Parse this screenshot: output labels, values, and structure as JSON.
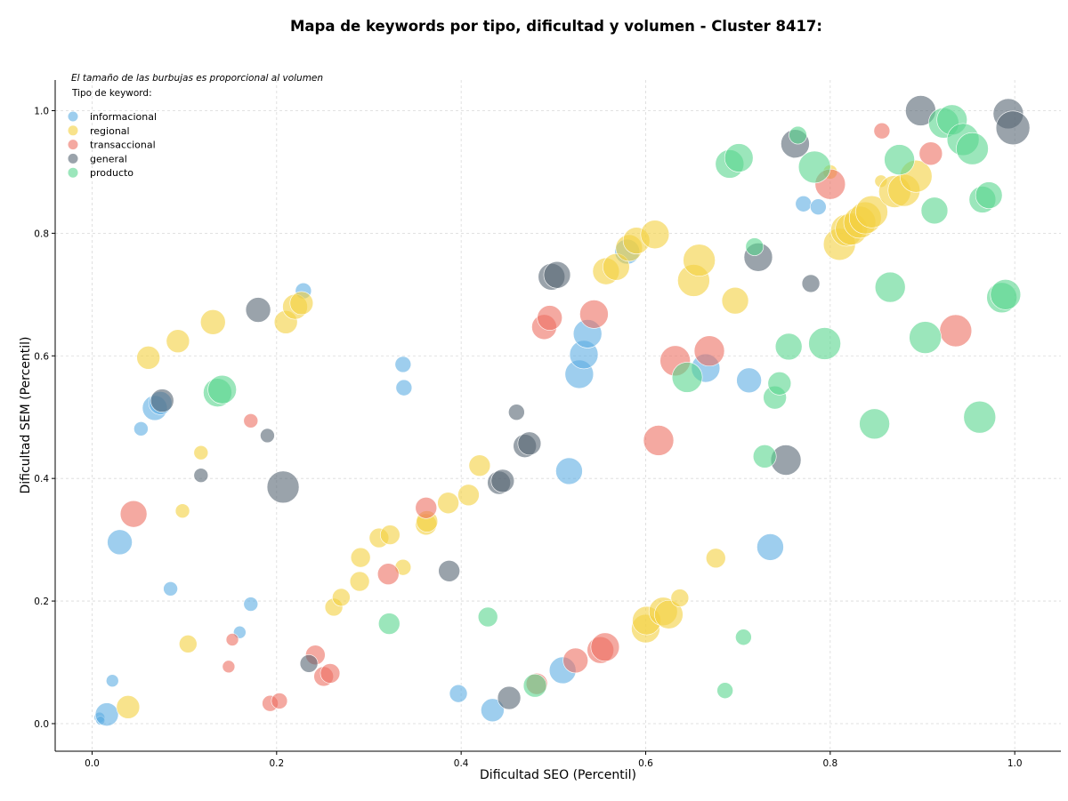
{
  "chart_data": {
    "type": "scatter",
    "title": "Mapa de keywords por tipo, dificultad y volumen - Cluster 8417:",
    "xlabel": "Dificultad SEO (Percentil)",
    "ylabel": "Dificultad SEM (Percentil)",
    "xlim": [
      -0.04,
      1.05
    ],
    "ylim": [
      -0.045,
      1.05
    ],
    "xticks": [
      "0.0",
      "0.2",
      "0.4",
      "0.6",
      "0.8",
      "1.0"
    ],
    "yticks": [
      "0.0",
      "0.2",
      "0.4",
      "0.6",
      "0.8",
      "1.0"
    ],
    "grid": true,
    "legend_position": "top-left",
    "note": "El tamaño de las burbujas es proporcional al volumen",
    "legend_title": "Tipo de keyword:",
    "series": [
      {
        "name": "informacional",
        "color": "#5dade2",
        "points": [
          [
            0.008,
            0.01,
            6
          ],
          [
            0.009,
            0.005,
            5
          ],
          [
            0.016,
            0.015,
            13
          ],
          [
            0.022,
            0.07,
            7
          ],
          [
            0.03,
            0.296,
            14
          ],
          [
            0.053,
            0.481,
            8
          ],
          [
            0.068,
            0.515,
            14
          ],
          [
            0.074,
            0.523,
            13
          ],
          [
            0.085,
            0.22,
            8
          ],
          [
            0.16,
            0.149,
            7
          ],
          [
            0.172,
            0.195,
            8
          ],
          [
            0.229,
            0.706,
            9
          ],
          [
            0.337,
            0.586,
            9
          ],
          [
            0.338,
            0.548,
            9
          ],
          [
            0.397,
            0.049,
            10
          ],
          [
            0.434,
            0.022,
            13
          ],
          [
            0.51,
            0.087,
            15
          ],
          [
            0.517,
            0.412,
            15
          ],
          [
            0.528,
            0.57,
            16
          ],
          [
            0.533,
            0.602,
            16
          ],
          [
            0.537,
            0.636,
            16
          ],
          [
            0.58,
            0.77,
            14
          ],
          [
            0.665,
            0.58,
            16
          ],
          [
            0.712,
            0.56,
            14
          ],
          [
            0.735,
            0.288,
            15
          ],
          [
            0.771,
            0.848,
            9
          ],
          [
            0.787,
            0.843,
            9
          ]
        ]
      },
      {
        "name": "regional",
        "color": "#f4d03f",
        "points": [
          [
            0.039,
            0.027,
            13
          ],
          [
            0.061,
            0.597,
            13
          ],
          [
            0.093,
            0.624,
            13
          ],
          [
            0.098,
            0.347,
            8
          ],
          [
            0.104,
            0.13,
            10
          ],
          [
            0.118,
            0.442,
            8
          ],
          [
            0.131,
            0.655,
            14
          ],
          [
            0.21,
            0.655,
            13
          ],
          [
            0.22,
            0.68,
            14
          ],
          [
            0.227,
            0.686,
            13
          ],
          [
            0.262,
            0.19,
            10
          ],
          [
            0.27,
            0.206,
            10
          ],
          [
            0.29,
            0.232,
            11
          ],
          [
            0.291,
            0.271,
            11
          ],
          [
            0.311,
            0.303,
            11
          ],
          [
            0.323,
            0.308,
            11
          ],
          [
            0.337,
            0.255,
            9
          ],
          [
            0.362,
            0.325,
            12
          ],
          [
            0.363,
            0.33,
            12
          ],
          [
            0.386,
            0.36,
            12
          ],
          [
            0.408,
            0.373,
            12
          ],
          [
            0.42,
            0.421,
            12
          ],
          [
            0.557,
            0.738,
            15
          ],
          [
            0.568,
            0.745,
            15
          ],
          [
            0.582,
            0.776,
            15
          ],
          [
            0.59,
            0.788,
            15
          ],
          [
            0.6,
            0.155,
            16
          ],
          [
            0.601,
            0.168,
            16
          ],
          [
            0.61,
            0.798,
            16
          ],
          [
            0.619,
            0.183,
            16
          ],
          [
            0.625,
            0.178,
            16
          ],
          [
            0.637,
            0.205,
            10
          ],
          [
            0.652,
            0.723,
            18
          ],
          [
            0.658,
            0.756,
            18
          ],
          [
            0.676,
            0.27,
            11
          ],
          [
            0.697,
            0.69,
            15
          ],
          [
            0.8,
            0.9,
            8
          ],
          [
            0.81,
            0.782,
            18
          ],
          [
            0.818,
            0.805,
            18
          ],
          [
            0.823,
            0.807,
            18
          ],
          [
            0.832,
            0.818,
            18
          ],
          [
            0.838,
            0.825,
            18
          ],
          [
            0.845,
            0.835,
            18
          ],
          [
            0.855,
            0.885,
            7
          ],
          [
            0.87,
            0.868,
            18
          ],
          [
            0.88,
            0.87,
            18
          ],
          [
            0.893,
            0.893,
            18
          ]
        ]
      },
      {
        "name": "transaccional",
        "color": "#ec7063",
        "points": [
          [
            0.045,
            0.342,
            15
          ],
          [
            0.148,
            0.093,
            7
          ],
          [
            0.152,
            0.137,
            7
          ],
          [
            0.172,
            0.494,
            8
          ],
          [
            0.193,
            0.033,
            9
          ],
          [
            0.203,
            0.037,
            9
          ],
          [
            0.242,
            0.112,
            11
          ],
          [
            0.251,
            0.077,
            11
          ],
          [
            0.258,
            0.082,
            11
          ],
          [
            0.321,
            0.244,
            12
          ],
          [
            0.362,
            0.352,
            12
          ],
          [
            0.482,
            0.065,
            12
          ],
          [
            0.49,
            0.647,
            14
          ],
          [
            0.496,
            0.662,
            14
          ],
          [
            0.524,
            0.103,
            14
          ],
          [
            0.544,
            0.668,
            16
          ],
          [
            0.551,
            0.12,
            15
          ],
          [
            0.556,
            0.125,
            16
          ],
          [
            0.614,
            0.462,
            17
          ],
          [
            0.632,
            0.592,
            17
          ],
          [
            0.669,
            0.608,
            17
          ],
          [
            0.856,
            0.967,
            9
          ],
          [
            0.8,
            0.88,
            17
          ],
          [
            0.909,
            0.93,
            13
          ],
          [
            0.936,
            0.641,
            18
          ]
        ]
      },
      {
        "name": "general",
        "color": "#566573",
        "points": [
          [
            0.118,
            0.405,
            8
          ],
          [
            0.076,
            0.527,
            13
          ],
          [
            0.18,
            0.675,
            14
          ],
          [
            0.19,
            0.47,
            8
          ],
          [
            0.207,
            0.386,
            18
          ],
          [
            0.235,
            0.098,
            10
          ],
          [
            0.387,
            0.249,
            12
          ],
          [
            0.441,
            0.393,
            13
          ],
          [
            0.445,
            0.396,
            13
          ],
          [
            0.452,
            0.042,
            13
          ],
          [
            0.46,
            0.508,
            9
          ],
          [
            0.469,
            0.453,
            13
          ],
          [
            0.474,
            0.457,
            13
          ],
          [
            0.498,
            0.729,
            15
          ],
          [
            0.504,
            0.732,
            15
          ],
          [
            0.722,
            0.761,
            16
          ],
          [
            0.752,
            0.43,
            17
          ],
          [
            0.762,
            0.946,
            16
          ],
          [
            0.779,
            0.718,
            10
          ],
          [
            0.898,
            1.0,
            17
          ],
          [
            0.993,
            0.995,
            17
          ],
          [
            0.998,
            0.972,
            19
          ]
        ]
      },
      {
        "name": "producto",
        "color": "#58d68d",
        "points": [
          [
            0.136,
            0.54,
            16
          ],
          [
            0.141,
            0.545,
            16
          ],
          [
            0.322,
            0.163,
            12
          ],
          [
            0.429,
            0.174,
            11
          ],
          [
            0.48,
            0.062,
            13
          ],
          [
            0.645,
            0.565,
            17
          ],
          [
            0.686,
            0.054,
            9
          ],
          [
            0.691,
            0.913,
            16
          ],
          [
            0.701,
            0.923,
            16
          ],
          [
            0.706,
            0.141,
            9
          ],
          [
            0.718,
            0.778,
            10
          ],
          [
            0.729,
            0.436,
            13
          ],
          [
            0.74,
            0.532,
            13
          ],
          [
            0.745,
            0.555,
            13
          ],
          [
            0.755,
            0.615,
            15
          ],
          [
            0.765,
            0.96,
            10
          ],
          [
            0.783,
            0.908,
            18
          ],
          [
            0.794,
            0.62,
            18
          ],
          [
            0.848,
            0.489,
            17
          ],
          [
            0.865,
            0.712,
            17
          ],
          [
            0.875,
            0.92,
            17
          ],
          [
            0.903,
            0.63,
            18
          ],
          [
            0.913,
            0.837,
            15
          ],
          [
            0.923,
            0.98,
            17
          ],
          [
            0.932,
            0.985,
            17
          ],
          [
            0.944,
            0.953,
            18
          ],
          [
            0.954,
            0.938,
            18
          ],
          [
            0.965,
            0.855,
            15
          ],
          [
            0.972,
            0.862,
            15
          ],
          [
            0.962,
            0.5,
            18
          ],
          [
            0.986,
            0.695,
            17
          ],
          [
            0.99,
            0.7,
            17
          ]
        ]
      }
    ]
  }
}
